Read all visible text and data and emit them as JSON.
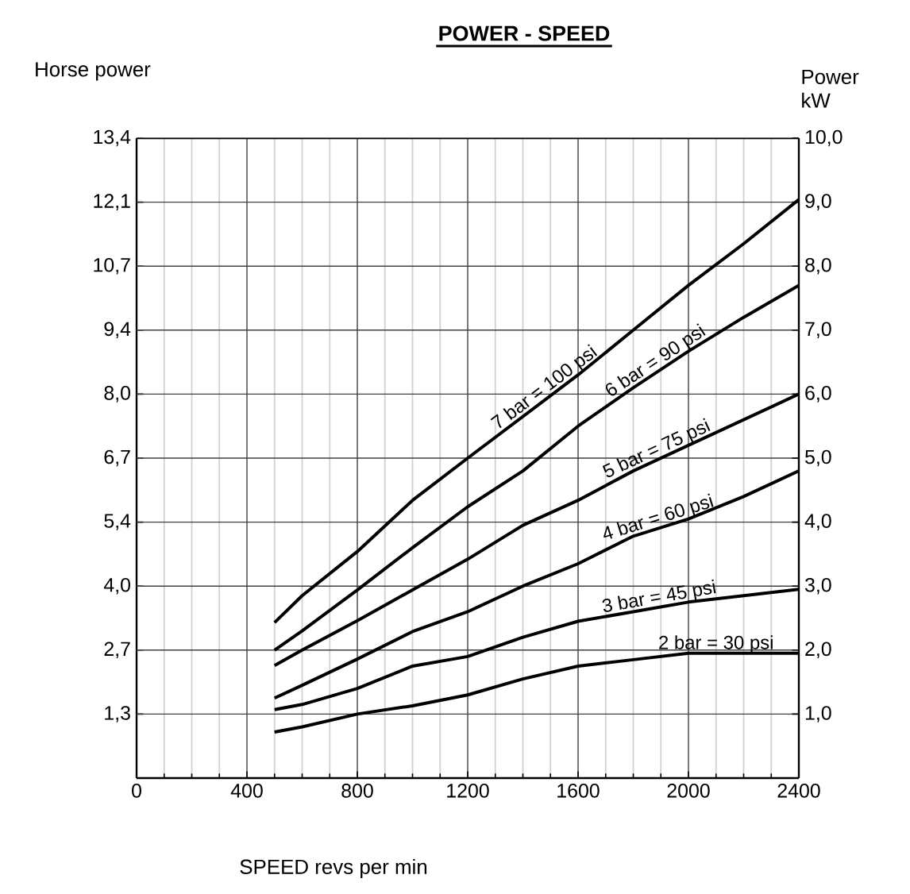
{
  "chart_data": {
    "type": "line",
    "title": "POWER - SPEED",
    "xlabel": "SPEED revs per min",
    "ylabel": "Horse power",
    "y2label": "Power kW",
    "xlim": [
      0,
      2400
    ],
    "xticks": [
      0,
      400,
      800,
      1200,
      1600,
      2000,
      2400
    ],
    "ylim": [
      0,
      13.4
    ],
    "yticks": [
      {
        "value": 1.34,
        "label": "1,3"
      },
      {
        "value": 2.68,
        "label": "2,7"
      },
      {
        "value": 4.02,
        "label": "4,0"
      },
      {
        "value": 5.36,
        "label": "5,4"
      },
      {
        "value": 6.7,
        "label": "6,7"
      },
      {
        "value": 8.04,
        "label": "8,0"
      },
      {
        "value": 9.38,
        "label": "9,4"
      },
      {
        "value": 10.72,
        "label": "10,7"
      },
      {
        "value": 12.06,
        "label": "12,1"
      },
      {
        "value": 13.4,
        "label": "13,4"
      }
    ],
    "y2lim": [
      0,
      10
    ],
    "y2ticks": [
      {
        "value": 1,
        "label": "1,0"
      },
      {
        "value": 2,
        "label": "2,0"
      },
      {
        "value": 3,
        "label": "3,0"
      },
      {
        "value": 4,
        "label": "4,0"
      },
      {
        "value": 5,
        "label": "5,0"
      },
      {
        "value": 6,
        "label": "6,0"
      },
      {
        "value": 7,
        "label": "7,0"
      },
      {
        "value": 8,
        "label": "8,0"
      },
      {
        "value": 9,
        "label": "9,0"
      },
      {
        "value": 10,
        "label": "10,0"
      }
    ],
    "grid": true,
    "x": [
      500,
      600,
      800,
      1000,
      1200,
      1400,
      1600,
      1800,
      2000,
      2200,
      2400
    ],
    "series": [
      {
        "name": "7 bar = 100 psi",
        "color": "#000000",
        "axis": "y2",
        "values": [
          2.43,
          2.85,
          3.54,
          4.34,
          5.0,
          5.65,
          6.3,
          7.0,
          7.7,
          8.35,
          9.04
        ]
      },
      {
        "name": "6 bar = 90 psi",
        "color": "#000000",
        "axis": "y2",
        "values": [
          2.0,
          2.3,
          2.94,
          3.6,
          4.24,
          4.8,
          5.5,
          6.1,
          6.67,
          7.2,
          7.7
        ]
      },
      {
        "name": "5 bar = 75 psi",
        "color": "#000000",
        "axis": "y2",
        "values": [
          1.76,
          2.0,
          2.46,
          2.94,
          3.42,
          3.95,
          4.34,
          4.8,
          5.2,
          5.6,
          6.0
        ]
      },
      {
        "name": "4 bar = 60 psi",
        "color": "#000000",
        "axis": "y2",
        "values": [
          1.25,
          1.45,
          1.86,
          2.29,
          2.6,
          3.0,
          3.35,
          3.78,
          4.05,
          4.4,
          4.8
        ]
      },
      {
        "name": "3 bar = 45 psi",
        "color": "#000000",
        "axis": "y2",
        "values": [
          1.07,
          1.15,
          1.4,
          1.75,
          1.9,
          2.2,
          2.45,
          2.6,
          2.75,
          2.85,
          2.95
        ]
      },
      {
        "name": "2 bar = 30 psi",
        "color": "#000000",
        "axis": "y2",
        "values": [
          0.72,
          0.8,
          1.0,
          1.13,
          1.3,
          1.55,
          1.75,
          1.85,
          1.95,
          1.95,
          1.95
        ]
      }
    ]
  }
}
